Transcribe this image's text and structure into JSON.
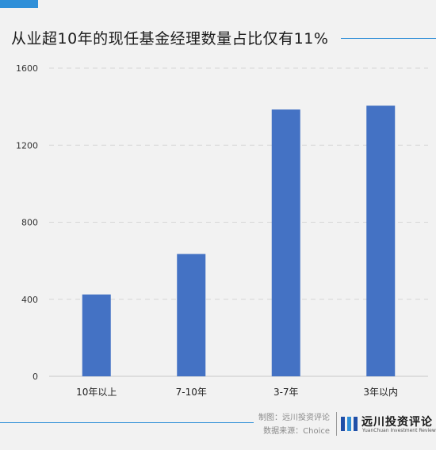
{
  "title": "从业超10年的现任基金经理数量占比仅有11%",
  "colors": {
    "accent": "#2f8fd8",
    "bar": "#4472c4",
    "grid": "#d6d6d6",
    "background": "#f2f2f2"
  },
  "footer": {
    "credit_maker": "制图：远川投资评论",
    "credit_source": "数据来源：Choice",
    "logo_cn": "远川投资评论",
    "logo_en": "YuanChuan Investment Review"
  },
  "chart_data": {
    "type": "bar",
    "categories": [
      "10年以上",
      "7-10年",
      "3-7年",
      "3年以内"
    ],
    "values": [
      425,
      635,
      1385,
      1405
    ],
    "ylim": [
      0,
      1600
    ],
    "yticks": [
      0,
      400,
      800,
      1200,
      1600
    ],
    "grid": true,
    "xlabel": "",
    "ylabel": ""
  }
}
